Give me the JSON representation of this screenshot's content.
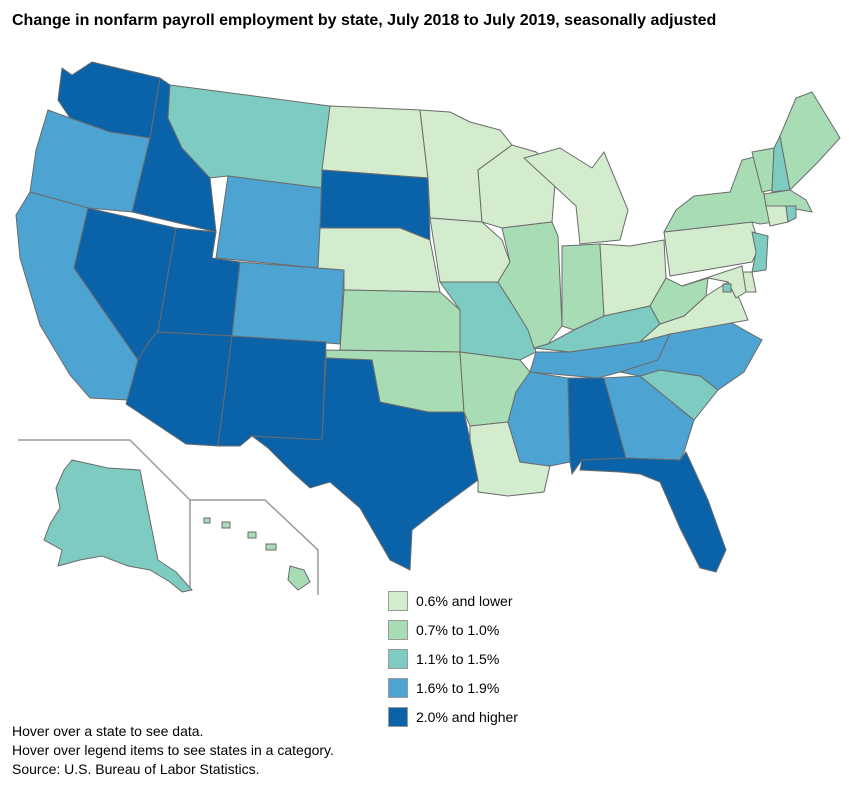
{
  "title": "Change in nonfarm payroll employment by state, July 2018 to July 2019, seasonally adjusted",
  "colors": {
    "c1": "#d3ecce",
    "c2": "#a8dcb4",
    "c3": "#7ecbc1",
    "c4": "#4da3d1",
    "c5": "#0a63a9"
  },
  "legend": [
    {
      "label": "0.6% and lower",
      "color": "#d3ecce"
    },
    {
      "label": "0.7% to 1.0%",
      "color": "#a8dcb4"
    },
    {
      "label": "1.1% to 1.5%",
      "color": "#7ecbc1"
    },
    {
      "label": "1.6% to 1.9%",
      "color": "#4da3d1"
    },
    {
      "label": "2.0% and higher",
      "color": "#0a63a9"
    }
  ],
  "notes": {
    "hover_state": "Hover over a state to see data.",
    "hover_legend": "Hover over legend items to see states in a category.",
    "source": "Source: U.S. Bureau of Labor Statistics."
  },
  "states": [
    {
      "abbr": "WA",
      "category": 5
    },
    {
      "abbr": "OR",
      "category": 4
    },
    {
      "abbr": "CA",
      "category": 4
    },
    {
      "abbr": "ID",
      "category": 5
    },
    {
      "abbr": "NV",
      "category": 5
    },
    {
      "abbr": "UT",
      "category": 5
    },
    {
      "abbr": "AZ",
      "category": 5
    },
    {
      "abbr": "MT",
      "category": 3
    },
    {
      "abbr": "WY",
      "category": 4
    },
    {
      "abbr": "CO",
      "category": 4
    },
    {
      "abbr": "NM",
      "category": 5
    },
    {
      "abbr": "ND",
      "category": 1
    },
    {
      "abbr": "SD",
      "category": 5
    },
    {
      "abbr": "NE",
      "category": 1
    },
    {
      "abbr": "KS",
      "category": 2
    },
    {
      "abbr": "OK",
      "category": 2
    },
    {
      "abbr": "TX",
      "category": 5
    },
    {
      "abbr": "MN",
      "category": 1
    },
    {
      "abbr": "IA",
      "category": 1
    },
    {
      "abbr": "MO",
      "category": 3
    },
    {
      "abbr": "AR",
      "category": 2
    },
    {
      "abbr": "LA",
      "category": 1
    },
    {
      "abbr": "WI",
      "category": 1
    },
    {
      "abbr": "IL",
      "category": 2
    },
    {
      "abbr": "MI",
      "category": 1
    },
    {
      "abbr": "IN",
      "category": 2
    },
    {
      "abbr": "OH",
      "category": 1
    },
    {
      "abbr": "KY",
      "category": 3
    },
    {
      "abbr": "TN",
      "category": 4
    },
    {
      "abbr": "MS",
      "category": 4
    },
    {
      "abbr": "AL",
      "category": 5
    },
    {
      "abbr": "GA",
      "category": 4
    },
    {
      "abbr": "FL",
      "category": 5
    },
    {
      "abbr": "SC",
      "category": 3
    },
    {
      "abbr": "NC",
      "category": 4
    },
    {
      "abbr": "VA",
      "category": 1
    },
    {
      "abbr": "WV",
      "category": 2
    },
    {
      "abbr": "PA",
      "category": 1
    },
    {
      "abbr": "NY",
      "category": 2
    },
    {
      "abbr": "VT",
      "category": 2
    },
    {
      "abbr": "NH",
      "category": 3
    },
    {
      "abbr": "ME",
      "category": 2
    },
    {
      "abbr": "MA",
      "category": 2
    },
    {
      "abbr": "CT",
      "category": 1
    },
    {
      "abbr": "RI",
      "category": 3
    },
    {
      "abbr": "NJ",
      "category": 3
    },
    {
      "abbr": "DE",
      "category": 1
    },
    {
      "abbr": "MD",
      "category": 1
    },
    {
      "abbr": "DC",
      "category": 3
    },
    {
      "abbr": "AK",
      "category": 3
    },
    {
      "abbr": "HI",
      "category": 2
    }
  ]
}
